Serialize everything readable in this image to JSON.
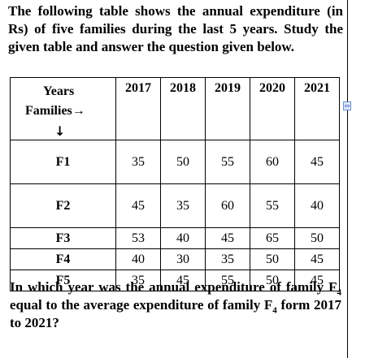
{
  "intro": "The following table shows the annual expenditure (in Rs) of five families during the last 5 years. Study the given table and answer the question given below.",
  "table": {
    "corner": {
      "years_label": "Years",
      "families_label": "Families→",
      "down_arrow": "↓"
    },
    "years": [
      "2017",
      "2018",
      "2019",
      "2020",
      "2021"
    ],
    "rows": [
      {
        "family": "F1",
        "values": [
          "35",
          "50",
          "55",
          "60",
          "45"
        ]
      },
      {
        "family": "F2",
        "values": [
          "45",
          "35",
          "60",
          "55",
          "40"
        ]
      },
      {
        "family": "F3",
        "values": [
          "53",
          "40",
          "45",
          "65",
          "50"
        ]
      },
      {
        "family": "F4",
        "values": [
          "40",
          "30",
          "35",
          "50",
          "45"
        ]
      },
      {
        "family": "F5",
        "values": [
          "35",
          "45",
          "55",
          "50",
          "45"
        ]
      }
    ]
  },
  "question": {
    "part1": "In which year was the annual expenditure of family F",
    "sub1": "4",
    "part2": " equal to the average expenditure of family F",
    "sub2": "4",
    "part3": " form 2017 to 2021?"
  },
  "edge_marker_glyph": "⇔"
}
